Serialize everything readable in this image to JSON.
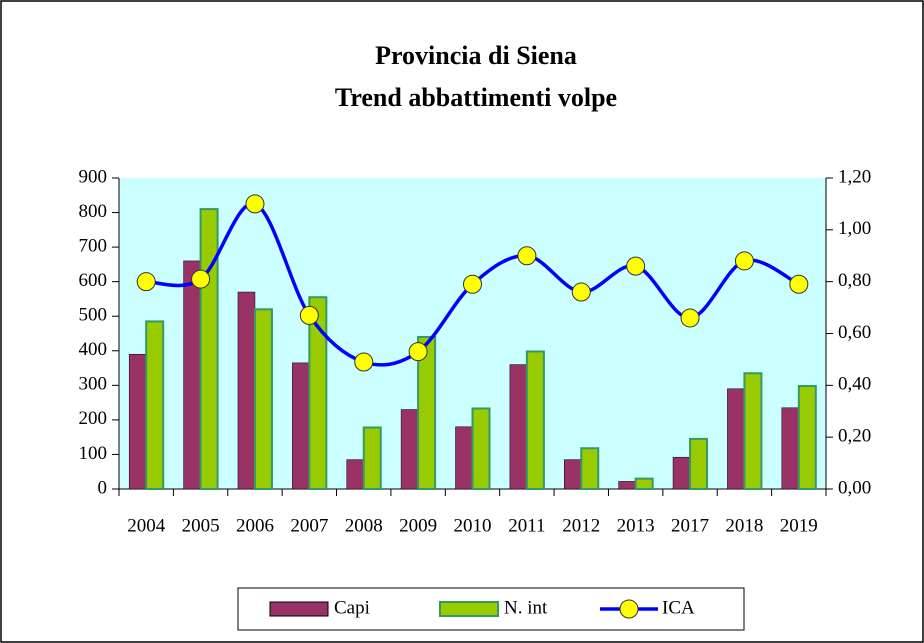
{
  "chart_data": {
    "type": "bar-line",
    "title": "Provincia di Siena",
    "subtitle": "Trend abbattimenti volpe",
    "categories": [
      "2004",
      "2005",
      "2006",
      "2007",
      "2008",
      "2009",
      "2010",
      "2011",
      "2012",
      "2013",
      "2017",
      "2018",
      "2019"
    ],
    "series": [
      {
        "name": "Capi",
        "type": "bar",
        "color": "#993366",
        "values": [
          390,
          660,
          570,
          365,
          85,
          230,
          180,
          360,
          85,
          22,
          92,
          290,
          235
        ]
      },
      {
        "name": "N. int",
        "type": "bar",
        "color": "#99cc00",
        "values": [
          485,
          810,
          520,
          555,
          178,
          440,
          233,
          398,
          118,
          30,
          145,
          335,
          298
        ]
      },
      {
        "name": "ICA",
        "type": "line",
        "axis": "y2",
        "color": "#0000ff",
        "values": [
          0.8,
          0.81,
          1.1,
          0.67,
          0.49,
          0.53,
          0.79,
          0.9,
          0.76,
          0.86,
          0.66,
          0.88,
          0.79
        ]
      }
    ],
    "ylim": [
      0,
      900
    ],
    "yticks": [
      0,
      100,
      200,
      300,
      400,
      500,
      600,
      700,
      800,
      900
    ],
    "y2lim": [
      0,
      1.2
    ],
    "y2ticks": [
      {
        "value": 0,
        "label": "0,00"
      },
      {
        "value": 0.2,
        "label": "0,20"
      },
      {
        "value": 0.4,
        "label": "0,40"
      },
      {
        "value": 0.6,
        "label": "0,60"
      },
      {
        "value": 0.8,
        "label": "0,80"
      },
      {
        "value": 1.0,
        "label": "1,00"
      },
      {
        "value": 1.2,
        "label": "1,20"
      }
    ],
    "legend": "bottom"
  }
}
